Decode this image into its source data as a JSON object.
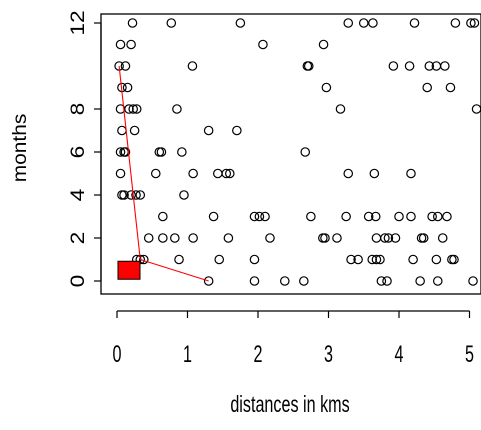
{
  "chart_data": {
    "type": "scatter",
    "xlabel": "distances in kms",
    "ylabel": "months",
    "xlim": [
      0,
      5.1
    ],
    "ylim": [
      0,
      12
    ],
    "xticks": [
      "0",
      "1",
      "2",
      "3",
      "4",
      "5"
    ],
    "yticks": [
      "0",
      "2",
      "4",
      "6",
      "8",
      "12"
    ],
    "ytick_values": [
      0,
      2,
      4,
      6,
      8,
      12
    ],
    "grid": false,
    "legend": "none",
    "point_color": "#000000",
    "path_color": "#ff0000",
    "marker_color": "#ff0000",
    "points": [
      [
        0.22,
        12
      ],
      [
        0.77,
        12
      ],
      [
        1.75,
        12
      ],
      [
        3.28,
        12
      ],
      [
        3.5,
        12
      ],
      [
        3.63,
        12
      ],
      [
        4.22,
        12
      ],
      [
        4.8,
        12
      ],
      [
        5.02,
        12
      ],
      [
        5.07,
        12
      ],
      [
        0.05,
        11
      ],
      [
        0.2,
        11
      ],
      [
        2.07,
        11
      ],
      [
        2.93,
        11
      ],
      [
        0.03,
        10
      ],
      [
        0.12,
        10
      ],
      [
        1.07,
        10
      ],
      [
        2.7,
        10
      ],
      [
        2.72,
        10
      ],
      [
        3.92,
        10
      ],
      [
        4.15,
        10
      ],
      [
        4.43,
        10
      ],
      [
        4.53,
        10
      ],
      [
        4.65,
        10
      ],
      [
        0.07,
        9
      ],
      [
        0.15,
        9
      ],
      [
        2.97,
        9
      ],
      [
        4.4,
        9
      ],
      [
        4.73,
        9
      ],
      [
        0.05,
        8
      ],
      [
        0.17,
        8
      ],
      [
        0.23,
        8
      ],
      [
        0.28,
        8
      ],
      [
        0.85,
        8
      ],
      [
        3.17,
        8
      ],
      [
        5.1,
        8
      ],
      [
        0.07,
        7
      ],
      [
        0.25,
        7
      ],
      [
        1.3,
        7
      ],
      [
        1.7,
        7
      ],
      [
        0.05,
        6
      ],
      [
        0.1,
        6
      ],
      [
        0.12,
        6
      ],
      [
        0.6,
        6
      ],
      [
        0.63,
        6
      ],
      [
        0.92,
        6
      ],
      [
        2.67,
        6
      ],
      [
        0.05,
        5
      ],
      [
        0.55,
        5
      ],
      [
        1.08,
        5
      ],
      [
        1.43,
        5
      ],
      [
        1.55,
        5
      ],
      [
        1.6,
        5
      ],
      [
        3.28,
        5
      ],
      [
        3.65,
        5
      ],
      [
        4.17,
        5
      ],
      [
        0.07,
        4
      ],
      [
        0.1,
        4
      ],
      [
        0.2,
        4
      ],
      [
        0.27,
        4
      ],
      [
        0.33,
        4
      ],
      [
        0.95,
        4
      ],
      [
        0.65,
        3
      ],
      [
        1.37,
        3
      ],
      [
        1.95,
        3
      ],
      [
        2.02,
        3
      ],
      [
        2.1,
        3
      ],
      [
        2.75,
        3
      ],
      [
        3.25,
        3
      ],
      [
        3.57,
        3
      ],
      [
        3.67,
        3
      ],
      [
        4.0,
        3
      ],
      [
        4.17,
        3
      ],
      [
        4.47,
        3
      ],
      [
        4.55,
        3
      ],
      [
        4.68,
        3
      ],
      [
        0.45,
        2
      ],
      [
        0.65,
        2
      ],
      [
        0.82,
        2
      ],
      [
        1.08,
        2
      ],
      [
        1.58,
        2
      ],
      [
        2.17,
        2
      ],
      [
        2.92,
        2
      ],
      [
        2.95,
        2
      ],
      [
        3.12,
        2
      ],
      [
        3.68,
        2
      ],
      [
        3.8,
        2
      ],
      [
        3.85,
        2
      ],
      [
        3.95,
        2
      ],
      [
        4.32,
        2
      ],
      [
        4.35,
        2
      ],
      [
        4.62,
        2
      ],
      [
        0.28,
        1
      ],
      [
        0.33,
        1
      ],
      [
        0.38,
        1
      ],
      [
        0.88,
        1
      ],
      [
        1.45,
        1
      ],
      [
        1.95,
        1
      ],
      [
        3.32,
        1
      ],
      [
        3.42,
        1
      ],
      [
        3.62,
        1
      ],
      [
        3.68,
        1
      ],
      [
        3.73,
        1
      ],
      [
        4.2,
        1
      ],
      [
        4.53,
        1
      ],
      [
        4.75,
        1
      ],
      [
        4.78,
        1
      ],
      [
        1.3,
        0
      ],
      [
        1.95,
        0
      ],
      [
        2.38,
        0
      ],
      [
        2.65,
        0
      ],
      [
        3.75,
        0
      ],
      [
        3.83,
        0
      ],
      [
        4.3,
        0
      ],
      [
        4.55,
        0
      ],
      [
        5.05,
        0
      ]
    ],
    "path": [
      [
        0.03,
        10
      ],
      [
        0.33,
        1
      ],
      [
        1.3,
        0
      ]
    ],
    "square_marker": {
      "x": 0.17,
      "y": 0.5
    }
  }
}
